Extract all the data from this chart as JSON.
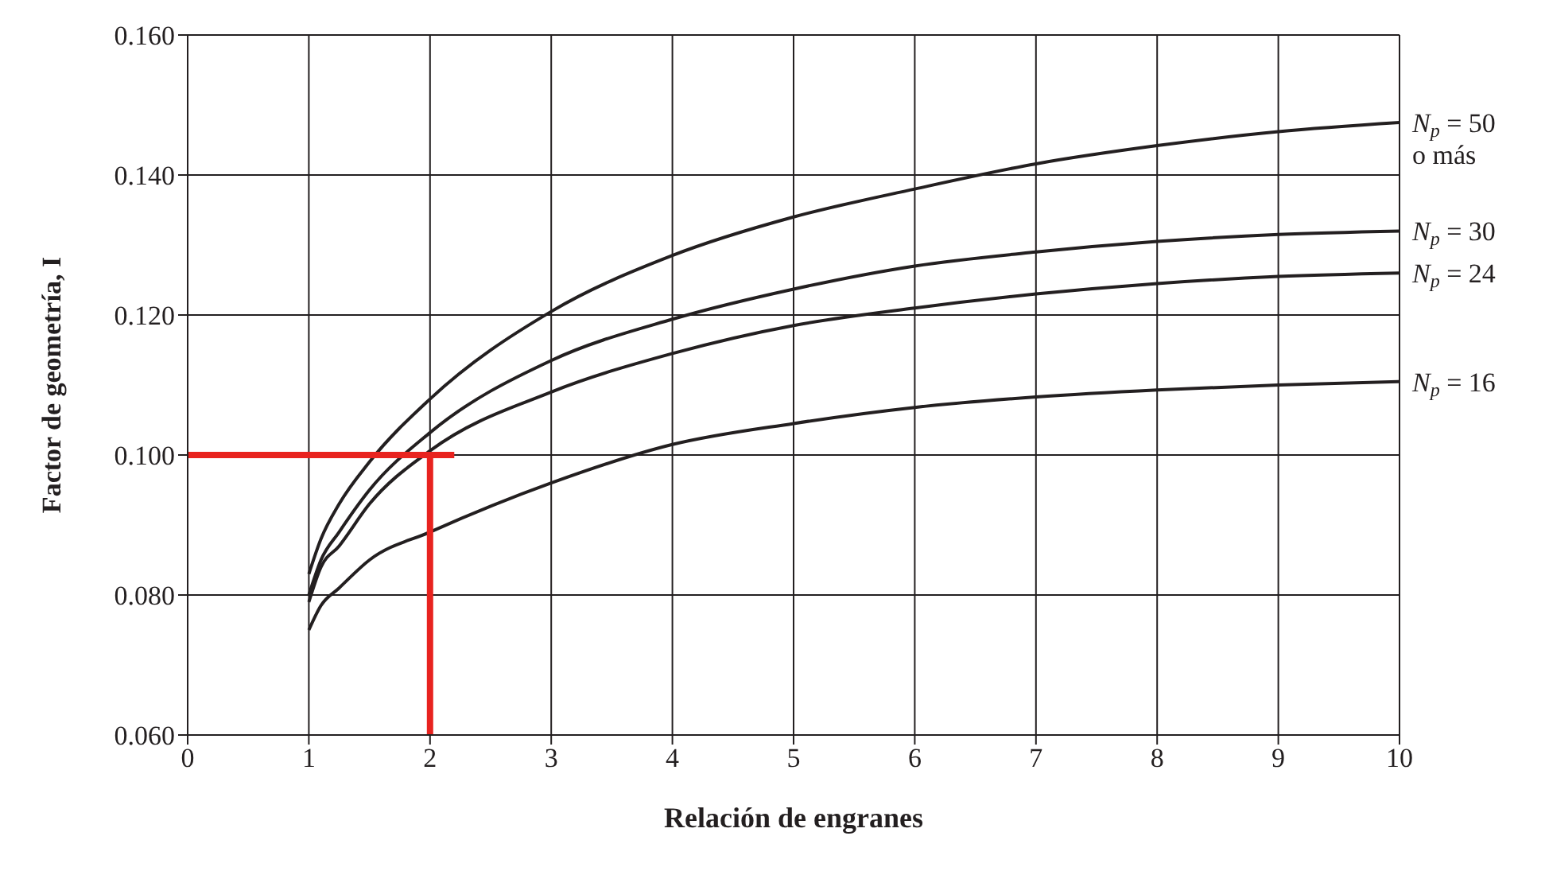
{
  "chart_data": {
    "type": "line",
    "xlabel": "Relación de engranes",
    "ylabel": "Factor de geometría, I",
    "xlim": [
      0,
      10
    ],
    "xticks": [
      0,
      1,
      2,
      3,
      4,
      5,
      6,
      7,
      8,
      9,
      10
    ],
    "ylim": [
      0.06,
      0.16
    ],
    "yticks": [
      {
        "value": 0.06,
        "label": "0.060"
      },
      {
        "value": 0.08,
        "label": "0.080"
      },
      {
        "value": 0.1,
        "label": "0.100"
      },
      {
        "value": 0.12,
        "label": "0.120"
      },
      {
        "value": 0.14,
        "label": "0.140"
      },
      {
        "value": 0.16,
        "label": "0.160"
      }
    ],
    "grid": true,
    "legend": false,
    "marker": "none",
    "line_style": "solid",
    "series": [
      {
        "name": "N$_{p}$ = 50 o más",
        "color": "#231f20",
        "x": [
          1,
          1.1,
          1.25,
          1.5,
          2,
          3,
          4,
          5,
          6,
          7,
          8,
          9,
          10
        ],
        "values": [
          0.083,
          0.088,
          0.093,
          0.099,
          0.108,
          0.1205,
          0.1285,
          0.134,
          0.138,
          0.1416,
          0.1442,
          0.1462,
          0.1475
        ]
      },
      {
        "name": "N$_{p}$ = 30",
        "color": "#231f20",
        "x": [
          1,
          1.1,
          1.25,
          1.5,
          2,
          3,
          4,
          5,
          6,
          7,
          8,
          9,
          10
        ],
        "values": [
          0.08,
          0.085,
          0.089,
          0.095,
          0.1032,
          0.1135,
          0.1194,
          0.1237,
          0.127,
          0.129,
          0.1305,
          0.1315,
          0.132
        ]
      },
      {
        "name": "N$_{p}$ = 24",
        "color": "#231f20",
        "x": [
          1,
          1.1,
          1.25,
          1.5,
          2,
          3,
          4,
          5,
          6,
          7,
          8,
          9,
          10
        ],
        "values": [
          0.079,
          0.084,
          0.087,
          0.093,
          0.1006,
          0.109,
          0.1145,
          0.1185,
          0.121,
          0.123,
          0.1245,
          0.1255,
          0.126
        ]
      },
      {
        "name": "N$_{p}$ = 16",
        "color": "#231f20",
        "x": [
          1,
          1.1,
          1.25,
          1.5,
          2,
          3,
          4,
          5,
          6,
          7,
          8,
          9,
          10
        ],
        "values": [
          0.075,
          0.0785,
          0.081,
          0.085,
          0.089,
          0.096,
          0.1015,
          0.1045,
          0.1068,
          0.1083,
          0.1093,
          0.11,
          0.1105
        ]
      },
      {
        "color": "#e8231f",
        "x": [
          0,
          2.2
        ],
        "values": [
          0.1,
          0.1
        ]
      },
      {
        "color": "#e8231f",
        "x": [
          2,
          2
        ],
        "values": [
          0.06,
          0.1
        ]
      }
    ]
  }
}
